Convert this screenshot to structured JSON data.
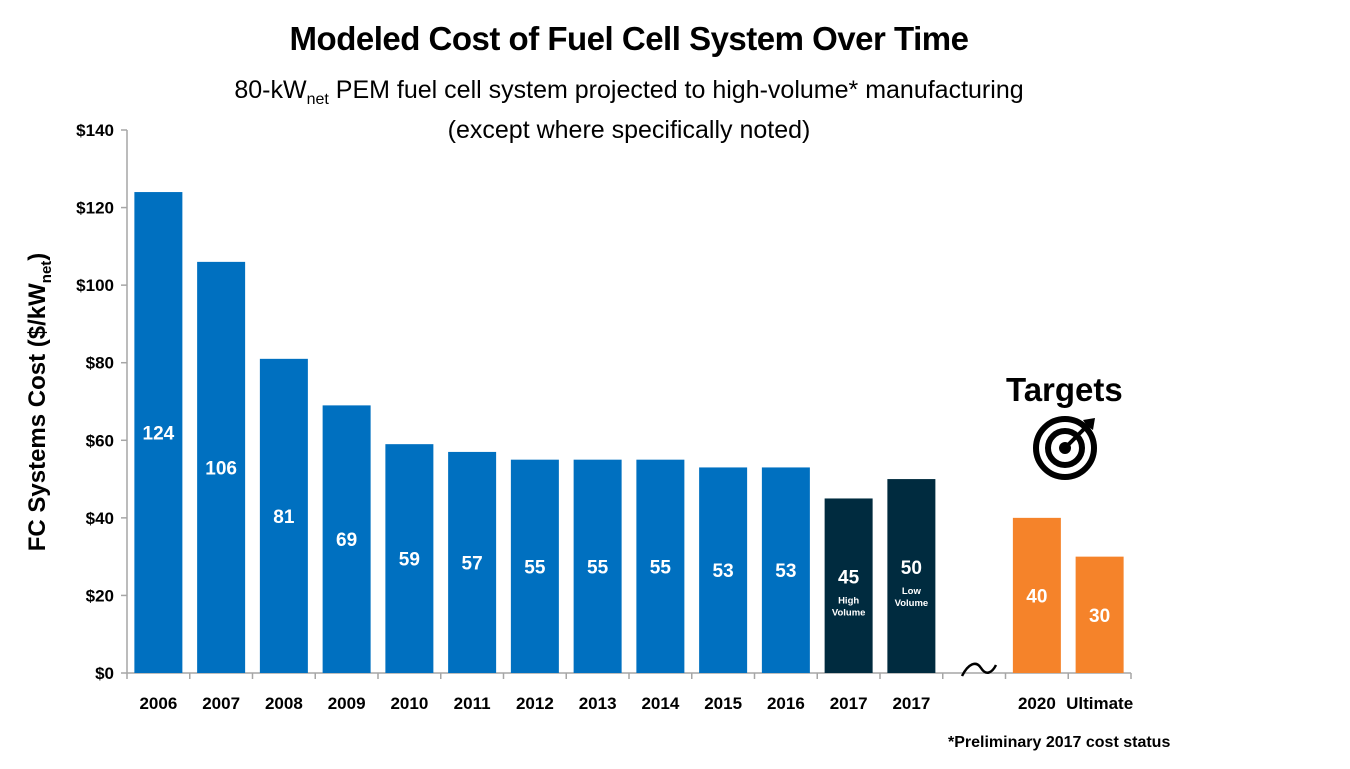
{
  "chart_data": {
    "type": "bar",
    "title": "Modeled Cost of Fuel Cell System Over Time",
    "subtitle_line1_pre": "80-kW",
    "subtitle_line1_sub": "net",
    "subtitle_line1_post": " PEM fuel cell system projected to high-volume* manufacturing",
    "subtitle_line2": "(except where specifically noted)",
    "ylabel_main": "FC Systems Cost ($/kW",
    "ylabel_sub": "net",
    "ylabel_close": ")",
    "ylim": [
      0,
      140
    ],
    "yticks": [
      0,
      20,
      40,
      60,
      80,
      100,
      120,
      140
    ],
    "ytick_labels": [
      "$0",
      "$20",
      "$40",
      "$60",
      "$80",
      "$100",
      "$120",
      "$140"
    ],
    "categories": [
      "2006",
      "2007",
      "2008",
      "2009",
      "2010",
      "2011",
      "2012",
      "2013",
      "2014",
      "2015",
      "2016",
      "2017",
      "2017",
      "",
      "2020",
      "Ultimate"
    ],
    "values": [
      124,
      106,
      81,
      69,
      59,
      57,
      55,
      55,
      55,
      53,
      53,
      45,
      50,
      null,
      40,
      30
    ],
    "data_labels": [
      "124",
      "106",
      "81",
      "69",
      "59",
      "57",
      "55",
      "55",
      "55",
      "53",
      "53",
      "45",
      "50",
      "",
      "40",
      "30"
    ],
    "sub_labels": [
      "",
      "",
      "",
      "",
      "",
      "",
      "",
      "",
      "",
      "",
      "",
      "High Volume",
      "Low Volume",
      "",
      "",
      ""
    ],
    "groups": [
      "status",
      "status",
      "status",
      "status",
      "status",
      "status",
      "status",
      "status",
      "status",
      "status",
      "status",
      "status-2017",
      "status-2017",
      "break",
      "target",
      "target"
    ],
    "colors": {
      "status": "#0070C0",
      "status-2017": "#002B3F",
      "target": "#F5832A",
      "axis": "#A6A6A6"
    },
    "grid": false,
    "annotations": {
      "targets_label": "Targets",
      "targets_icon": "target-bullseye-icon",
      "axis_break": "axis-break-squiggle",
      "footnote": "*Preliminary 2017 cost status"
    }
  }
}
